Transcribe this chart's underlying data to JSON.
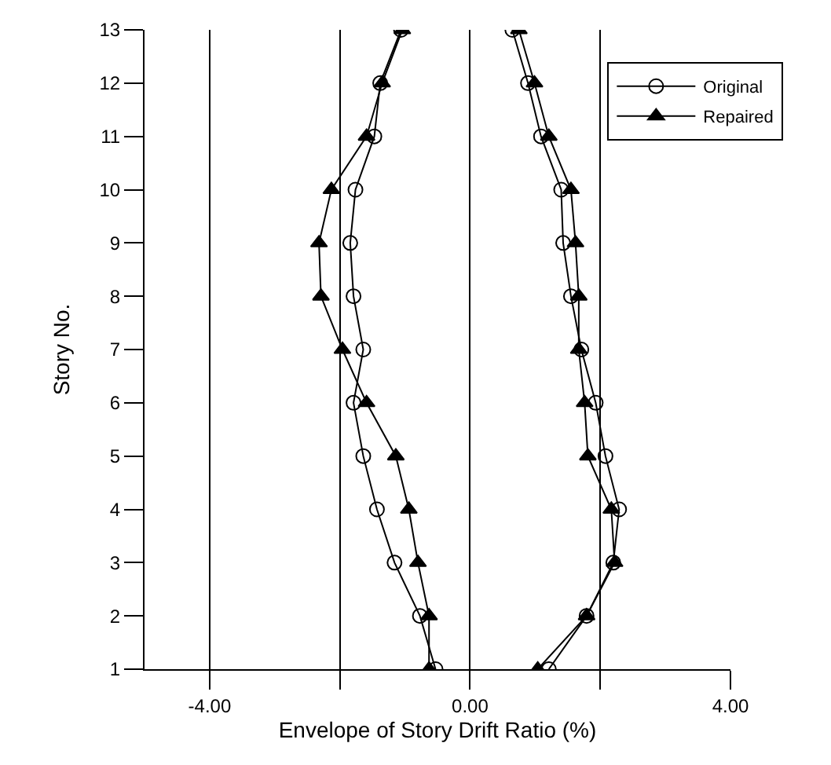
{
  "chart_data": {
    "type": "line",
    "xlabel": "Envelope of Story Drift Ratio (%)",
    "ylabel": "Story No.",
    "xlim": [
      -5,
      4
    ],
    "xticks": [
      {
        "value": -4,
        "label": "-4.00"
      },
      {
        "value": -2,
        "label": null
      },
      {
        "value": 0,
        "label": "0.00"
      },
      {
        "value": 2,
        "label": null
      },
      {
        "value": 4,
        "label": "4.00"
      }
    ],
    "ylim": [
      1,
      13
    ],
    "yticks": [
      1,
      2,
      3,
      4,
      5,
      6,
      7,
      8,
      9,
      10,
      11,
      12,
      13
    ],
    "grid": "x",
    "legend": "top right",
    "line_style": "solid",
    "series": [
      {
        "name": "Original",
        "color": "#000000",
        "marker": "circle",
        "x": [
          -0.53,
          -0.77,
          -1.16,
          -1.43,
          -1.64,
          -1.79,
          -1.64,
          -1.79,
          -1.84,
          -1.76,
          -1.47,
          -1.38,
          -1.06
        ],
        "values": [
          1,
          2,
          3,
          4,
          5,
          6,
          7,
          8,
          9,
          10,
          11,
          12,
          13
        ]
      },
      {
        "name": "Repaired",
        "color": "#000000",
        "marker": "triangle",
        "x": [
          -0.63,
          -0.63,
          -0.8,
          -0.94,
          -1.14,
          -1.59,
          -1.96,
          -2.29,
          -2.32,
          -2.13,
          -1.59,
          -1.35,
          -1.04
        ],
        "values": [
          1,
          2,
          3,
          4,
          5,
          6,
          7,
          8,
          9,
          10,
          11,
          12,
          13
        ]
      },
      {
        "color": "#000000",
        "marker": "circle",
        "x": [
          1.21,
          1.79,
          2.2,
          2.29,
          2.08,
          1.93,
          1.71,
          1.55,
          1.43,
          1.4,
          1.09,
          0.89,
          0.65
        ],
        "values": [
          1,
          2,
          3,
          4,
          5,
          6,
          7,
          8,
          9,
          10,
          11,
          12,
          13
        ]
      },
      {
        "color": "#000000",
        "marker": "triangle",
        "x": [
          1.04,
          1.79,
          2.22,
          2.17,
          1.81,
          1.76,
          1.67,
          1.67,
          1.62,
          1.55,
          1.21,
          0.99,
          0.75
        ],
        "values": [
          1,
          2,
          3,
          4,
          5,
          6,
          7,
          8,
          9,
          10,
          11,
          12,
          13
        ]
      }
    ]
  }
}
